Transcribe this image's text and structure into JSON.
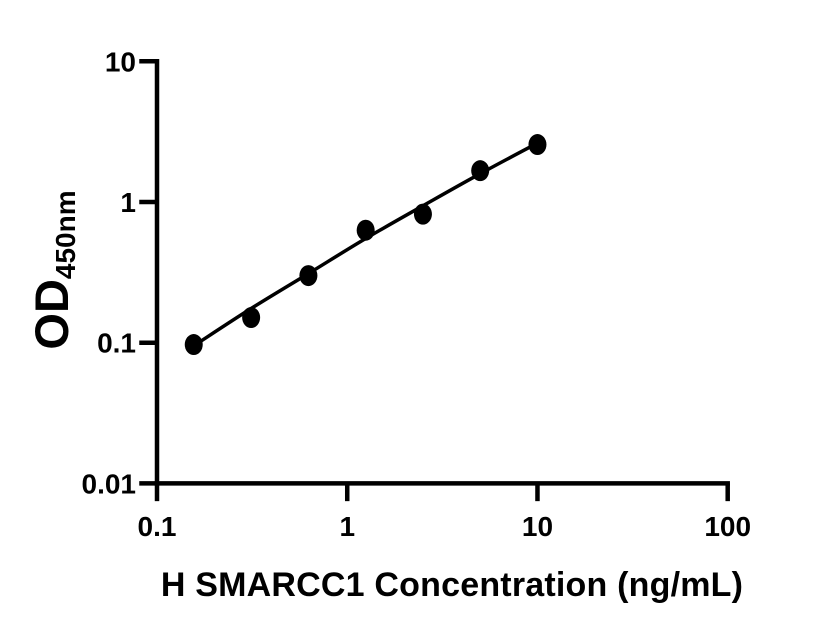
{
  "figure": {
    "background": "#ffffff",
    "ink_color": "#000000"
  },
  "chart_data": {
    "type": "scatter",
    "title": "",
    "xlabel": "H SMARCC1 Concentration (ng/mL)",
    "ylabel_main": "OD",
    "ylabel_sub": "450nm",
    "x_scale": "log",
    "y_scale": "log",
    "xlim": [
      0.1,
      100
    ],
    "ylim": [
      0.01,
      10
    ],
    "x_ticks": [
      "0.1",
      "1",
      "10",
      "100"
    ],
    "y_ticks": [
      "10",
      "1",
      "0.1",
      "0.01"
    ],
    "grid": false,
    "legend": false,
    "series": [
      {
        "name": "standard-points",
        "type": "scatter",
        "marker": "filled-circle",
        "color": "#000000",
        "x": [
          0.156,
          0.3125,
          0.625,
          1.25,
          2.5,
          5,
          10
        ],
        "y": [
          0.097,
          0.151,
          0.3,
          0.63,
          0.82,
          1.67,
          2.56
        ]
      },
      {
        "name": "fitted-curve",
        "type": "line",
        "color": "#000000",
        "x": [
          0.156,
          0.3125,
          0.625,
          1.25,
          2.5,
          5,
          10
        ],
        "y": [
          0.095,
          0.175,
          0.31,
          0.55,
          0.94,
          1.59,
          2.62
        ]
      }
    ]
  }
}
